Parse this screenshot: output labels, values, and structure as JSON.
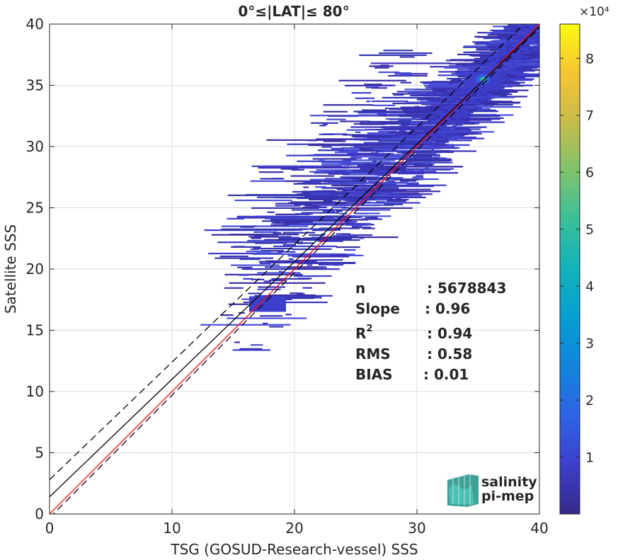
{
  "chart_data": {
    "type": "heatmap",
    "title": "0°≤|LAT|≤ 80°",
    "xlabel": "TSG (GOSUD-Research-vessel) SSS",
    "ylabel": "Satellite SSS",
    "xlim": [
      0,
      40
    ],
    "ylim": [
      0,
      40
    ],
    "xticks": [
      "0",
      "10",
      "20",
      "30",
      "40"
    ],
    "yticks": [
      "0",
      "5",
      "10",
      "15",
      "20",
      "25",
      "30",
      "35",
      "40"
    ],
    "grid": true,
    "colorbar": {
      "colormap": "parula",
      "clim": [
        0,
        86000
      ],
      "ticks": [
        "1",
        "2",
        "3",
        "4",
        "5",
        "6",
        "7",
        "8"
      ],
      "exponent_label": "×10⁴"
    },
    "lines": [
      {
        "name": "one-to-one",
        "slope": 1.0,
        "intercept": 0.0,
        "color": "#ff0000",
        "style": "solid"
      },
      {
        "name": "regression",
        "slope": 0.96,
        "intercept": 1.4,
        "color": "#000000",
        "style": "solid"
      },
      {
        "name": "upper-bound",
        "slope": 0.96,
        "intercept": 2.8,
        "color": "#000000",
        "style": "dashed"
      },
      {
        "name": "lower-bound",
        "slope": 1.0,
        "intercept": -0.3,
        "color": "#000000",
        "style": "dashed"
      }
    ],
    "stats": [
      {
        "label": "n",
        "value": ": 5678843"
      },
      {
        "label": "Slope",
        "value": ": 0.96"
      },
      {
        "label": "R",
        "sup": "2",
        "value": ": 0.94"
      },
      {
        "label": "RMS",
        "value": ": 0.58"
      },
      {
        "label": "BIAS",
        "value": ": 0.01"
      }
    ],
    "density_clusters": [
      {
        "x": 35.4,
        "y": 35.5,
        "peak": 0.5
      },
      {
        "x": 17.8,
        "y": 17.2,
        "peak": 0.06
      }
    ]
  },
  "logo": {
    "line1": "salinity",
    "line2": "pi-mep",
    "color": "#2aa89a"
  }
}
